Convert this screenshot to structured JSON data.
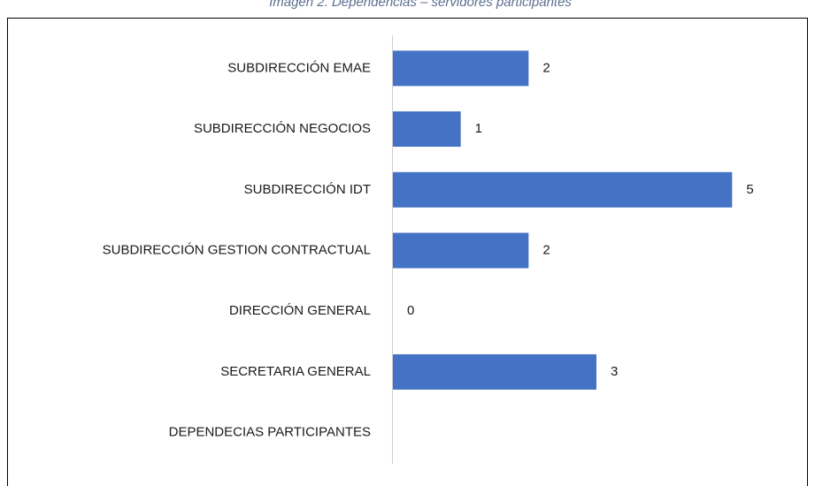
{
  "chart_data": {
    "type": "hbar",
    "title": "Imagen 2. Dependencias – servidores participantes",
    "categories": [
      "SUBDIRECCIÓN EMAE",
      "SUBDIRECCIÓN NEGOCIOS",
      "SUBDIRECCIÓN IDT",
      "SUBDIRECCIÓN GESTION CONTRACTUAL",
      "DIRECCIÓN GENERAL",
      "SECRETARIA GENERAL",
      "DEPENDECIAS PARTICIPANTES"
    ],
    "values": [
      2,
      1,
      5,
      2,
      0,
      3,
      null
    ],
    "color": "#4472c4",
    "xlim": [
      0,
      6
    ]
  }
}
